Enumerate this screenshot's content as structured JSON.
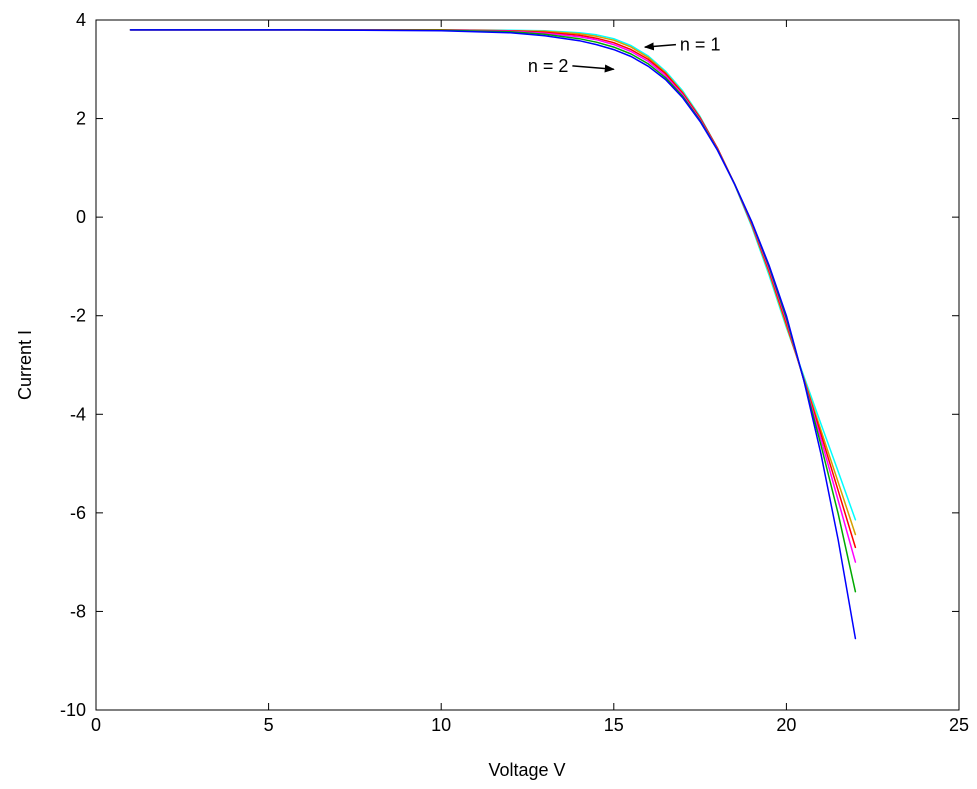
{
  "chart_data": {
    "type": "line",
    "title": "",
    "xlabel": "Voltage V",
    "ylabel": "Current I",
    "xlim": [
      0,
      25
    ],
    "ylim": [
      -10,
      4
    ],
    "x_ticks": [
      0,
      5,
      10,
      15,
      20,
      25
    ],
    "y_ticks": [
      -10,
      -8,
      -6,
      -4,
      -2,
      0,
      2,
      4
    ],
    "x_tick_labels": [
      "0",
      "5",
      "10",
      "15",
      "20",
      "25"
    ],
    "y_tick_labels": [
      "-10",
      "-8",
      "-6",
      "-4",
      "-2",
      "0",
      "2",
      "4"
    ],
    "grid": false,
    "legend": "none",
    "series": [
      {
        "color": "#00ffff",
        "x": [
          1,
          6,
          10,
          12,
          13,
          14,
          14.5,
          15,
          15.5,
          16,
          16.5,
          17,
          17.5,
          18,
          18.5,
          19,
          19.5,
          20,
          20.5,
          21,
          21.5,
          22
        ],
        "y": [
          3.8,
          3.8,
          3.8,
          3.79,
          3.78,
          3.74,
          3.7,
          3.62,
          3.48,
          3.27,
          2.96,
          2.56,
          2.04,
          1.4,
          0.66,
          -0.2,
          -1.18,
          -2.24,
          -3.22,
          -4.19,
          -5.16,
          -6.14
        ]
      },
      {
        "color": "#d4a000",
        "x": [
          1,
          6,
          10,
          12,
          13,
          14,
          14.5,
          15,
          15.5,
          16,
          16.5,
          17,
          17.5,
          18,
          18.5,
          19,
          19.5,
          20,
          20.5,
          21,
          21.5,
          22
        ],
        "y": [
          3.8,
          3.8,
          3.8,
          3.78,
          3.77,
          3.72,
          3.67,
          3.59,
          3.45,
          3.24,
          2.93,
          2.53,
          2.02,
          1.4,
          0.67,
          -0.17,
          -1.13,
          -2.2,
          -3.26,
          -4.32,
          -5.38,
          -6.44
        ]
      },
      {
        "color": "#ff0000",
        "x": [
          1,
          6,
          10,
          12,
          13,
          14,
          14.5,
          15,
          15.5,
          16,
          16.5,
          17,
          17.5,
          18,
          18.5,
          19,
          19.5,
          20,
          20.5,
          21,
          21.5,
          22
        ],
        "y": [
          3.8,
          3.8,
          3.8,
          3.78,
          3.75,
          3.69,
          3.63,
          3.54,
          3.4,
          3.2,
          2.91,
          2.51,
          2.01,
          1.4,
          0.67,
          -0.15,
          -1.09,
          -2.15,
          -3.28,
          -4.4,
          -5.55,
          -6.7
        ]
      },
      {
        "color": "#ff00ff",
        "x": [
          1,
          6,
          10,
          12,
          13,
          14,
          14.5,
          15,
          15.5,
          16,
          16.5,
          17,
          17.5,
          18,
          18.5,
          19,
          19.5,
          20,
          20.5,
          21,
          21.5,
          22
        ],
        "y": [
          3.8,
          3.8,
          3.79,
          3.77,
          3.73,
          3.66,
          3.6,
          3.5,
          3.36,
          3.16,
          2.87,
          2.48,
          1.98,
          1.38,
          0.67,
          -0.13,
          -1.05,
          -2.1,
          -3.3,
          -4.5,
          -5.75,
          -7.0
        ]
      },
      {
        "color": "#00aa00",
        "x": [
          1,
          6,
          10,
          12,
          13,
          14,
          14.5,
          15,
          15.5,
          16,
          16.5,
          17,
          17.5,
          18,
          18.5,
          19,
          19.5,
          20,
          20.5,
          21,
          21.5,
          22
        ],
        "y": [
          3.8,
          3.8,
          3.79,
          3.76,
          3.71,
          3.62,
          3.55,
          3.45,
          3.31,
          3.11,
          2.83,
          2.45,
          1.96,
          1.37,
          0.67,
          -0.11,
          -1.01,
          -2.05,
          -3.3,
          -4.62,
          -6.02,
          -7.6
        ]
      },
      {
        "color": "#0000ff",
        "x": [
          1,
          6,
          10,
          12,
          13,
          14,
          14.5,
          15,
          15.5,
          16,
          16.5,
          17,
          17.5,
          18,
          18.5,
          19,
          19.5,
          20,
          20.5,
          21,
          21.5,
          22
        ],
        "y": [
          3.8,
          3.8,
          3.78,
          3.74,
          3.68,
          3.58,
          3.5,
          3.4,
          3.26,
          3.06,
          2.79,
          2.42,
          1.94,
          1.36,
          0.67,
          -0.1,
          -0.98,
          -2.0,
          -3.3,
          -4.8,
          -6.55,
          -8.55
        ]
      }
    ],
    "annotations": [
      {
        "text": "n = 1",
        "text_x": 16.8,
        "text_y": 3.5,
        "arrow_to_x": 15.9,
        "arrow_to_y": 3.45
      },
      {
        "text": "n = 2",
        "text_x": 13.8,
        "text_y": 3.07,
        "arrow_to_x": 15.0,
        "arrow_to_y": 3.0
      }
    ]
  }
}
